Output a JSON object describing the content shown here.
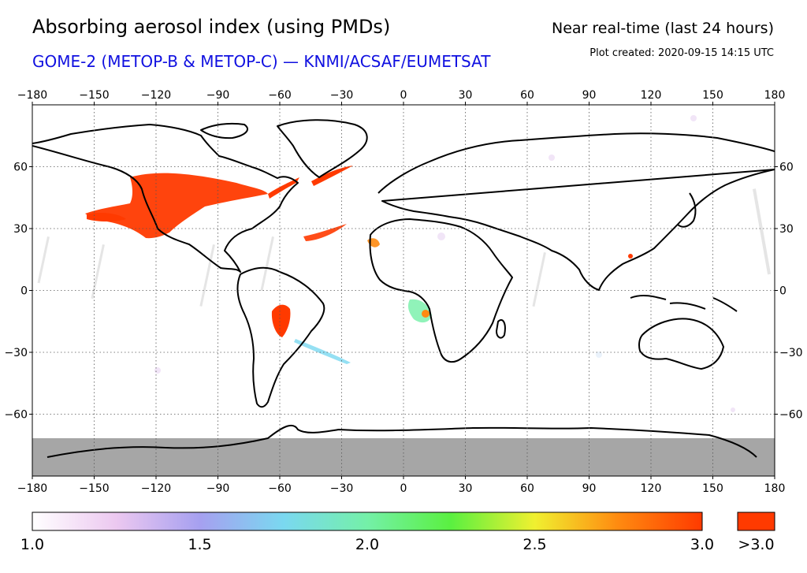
{
  "header": {
    "title": "Absorbing aerosol index (using PMDs)",
    "subtitle": "GOME-2 (METOP-B & METOP-C) — KNMI/ACSAF/EUMETSAT",
    "mode": "Near real-time (last 24 hours)",
    "created": "Plot created: 2020-09-15 14:15 UTC"
  },
  "map": {
    "projection": "equirectangular",
    "lon_ticks": [
      "−180",
      "−150",
      "−120",
      "−90",
      "−60",
      "−30",
      "0",
      "30",
      "60",
      "90",
      "120",
      "150",
      "180"
    ],
    "lat_ticks": [
      "60",
      "30",
      "0",
      "−30",
      "−60"
    ],
    "colors": {
      "coastline": "#000000",
      "grid": "#555555",
      "no_data": "#a6a6a6",
      "high": "#ff3a00"
    },
    "gridlines": true
  },
  "colorbar": {
    "labels": [
      "1.0",
      "1.5",
      "2.0",
      "2.5",
      "3.0"
    ],
    "over_label": ">3.0",
    "stops": [
      "#ffffff",
      "#ecc8f0",
      "#a6a0f0",
      "#7ad8f0",
      "#74f0a8",
      "#5af040",
      "#f0f030",
      "#ff8a10",
      "#ff3a00"
    ],
    "over_color": "#ff3a00"
  }
}
